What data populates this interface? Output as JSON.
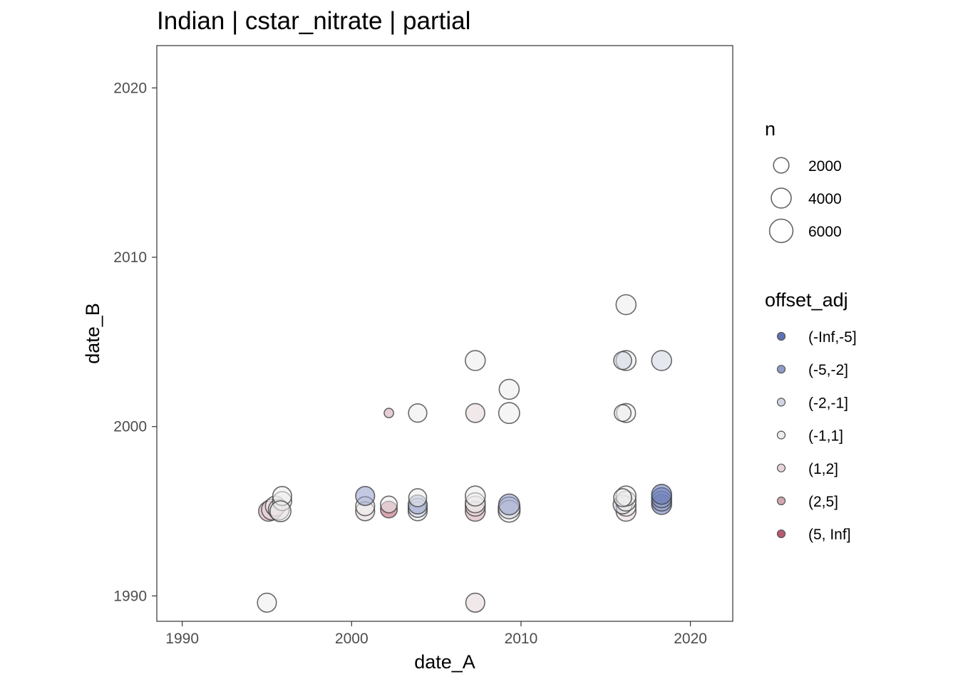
{
  "chart_data": {
    "type": "scatter",
    "title": "Indian | cstar_nitrate | partial",
    "xlabel": "date_A",
    "ylabel": "date_B",
    "xlim": [
      1988.5,
      2022.5
    ],
    "ylim": [
      1988.5,
      2022.5
    ],
    "x_ticks": [
      1990,
      2000,
      2010,
      2020
    ],
    "y_ticks": [
      1990,
      2000,
      2010,
      2020
    ],
    "grid": false,
    "legend_placement": "right",
    "size_legend": {
      "title": "n",
      "entries": [
        {
          "label": "2000",
          "value": 2000
        },
        {
          "label": "4000",
          "value": 4000
        },
        {
          "label": "6000",
          "value": 6000
        }
      ]
    },
    "color_legend": {
      "title": "offset_adj",
      "entries": [
        {
          "label": "(-Inf,-5]",
          "color": "#5e72b5"
        },
        {
          "label": "(-5,-2]",
          "color": "#8f9cc8"
        },
        {
          "label": "(-2,-1]",
          "color": "#d2d5e4"
        },
        {
          "label": "(-1,1]",
          "color": "#ededed"
        },
        {
          "label": "(1,2]",
          "color": "#e6d5d9"
        },
        {
          "label": "(2,5]",
          "color": "#d1a6b0"
        },
        {
          "label": "(5, Inf]",
          "color": "#b65b70"
        }
      ]
    },
    "points": [
      {
        "x": 1995.0,
        "y": 1989.6,
        "n": 3500,
        "cat": "(-1,1]"
      },
      {
        "x": 1995.1,
        "y": 1995.0,
        "n": 4000,
        "cat": "(2,5]"
      },
      {
        "x": 1995.3,
        "y": 1995.1,
        "n": 4500,
        "cat": "(1,2]"
      },
      {
        "x": 1995.5,
        "y": 1995.3,
        "n": 4000,
        "cat": "(-1,1]"
      },
      {
        "x": 1995.7,
        "y": 1995.1,
        "n": 4500,
        "cat": "(1,2]"
      },
      {
        "x": 1995.9,
        "y": 1995.6,
        "n": 3500,
        "cat": "(-1,1]"
      },
      {
        "x": 1995.9,
        "y": 1995.9,
        "n": 3500,
        "cat": "(-1,1]"
      },
      {
        "x": 1995.8,
        "y": 1995.0,
        "n": 4500,
        "cat": "(-1,1]"
      },
      {
        "x": 2000.8,
        "y": 1995.0,
        "n": 3500,
        "cat": "(1,2]"
      },
      {
        "x": 2000.8,
        "y": 1995.3,
        "n": 3500,
        "cat": "(-1,1]"
      },
      {
        "x": 2000.8,
        "y": 1995.9,
        "n": 3500,
        "cat": "(-5,-2]"
      },
      {
        "x": 2002.2,
        "y": 2000.8,
        "n": 400,
        "cat": "(2,5]"
      },
      {
        "x": 2002.2,
        "y": 1995.1,
        "n": 2500,
        "cat": "(5, Inf]"
      },
      {
        "x": 2002.2,
        "y": 1995.4,
        "n": 2500,
        "cat": "(-1,1]"
      },
      {
        "x": 2003.9,
        "y": 2000.8,
        "n": 3200,
        "cat": "(-1,1]"
      },
      {
        "x": 2003.9,
        "y": 1995.0,
        "n": 3500,
        "cat": "(-1,1]"
      },
      {
        "x": 2003.9,
        "y": 1995.2,
        "n": 3500,
        "cat": "(-2,-1]"
      },
      {
        "x": 2003.9,
        "y": 1995.4,
        "n": 3500,
        "cat": "(-5,-2]"
      },
      {
        "x": 2003.9,
        "y": 1995.8,
        "n": 3000,
        "cat": "(-1,1]"
      },
      {
        "x": 2007.3,
        "y": 2003.9,
        "n": 4000,
        "cat": "(-1,1]"
      },
      {
        "x": 2007.3,
        "y": 2000.8,
        "n": 3500,
        "cat": "(1,2]"
      },
      {
        "x": 2007.3,
        "y": 1995.0,
        "n": 4000,
        "cat": "(2,5]"
      },
      {
        "x": 2007.3,
        "y": 1995.3,
        "n": 4000,
        "cat": "(1,2]"
      },
      {
        "x": 2007.3,
        "y": 1995.5,
        "n": 4000,
        "cat": "(-1,1]"
      },
      {
        "x": 2007.3,
        "y": 1995.9,
        "n": 4000,
        "cat": "(-1,1]"
      },
      {
        "x": 2007.3,
        "y": 1989.6,
        "n": 3500,
        "cat": "(1,2]"
      },
      {
        "x": 2009.3,
        "y": 2002.2,
        "n": 4000,
        "cat": "(-1,1]"
      },
      {
        "x": 2009.3,
        "y": 2000.8,
        "n": 4500,
        "cat": "(-1,1]"
      },
      {
        "x": 2009.3,
        "y": 1995.0,
        "n": 5000,
        "cat": "(-1,1]"
      },
      {
        "x": 2009.3,
        "y": 1995.2,
        "n": 5000,
        "cat": "(-2,-1]"
      },
      {
        "x": 2009.3,
        "y": 1995.4,
        "n": 4500,
        "cat": "(-5,-2]"
      },
      {
        "x": 2016.2,
        "y": 2007.2,
        "n": 4000,
        "cat": "(-1,1]"
      },
      {
        "x": 2016.2,
        "y": 2003.9,
        "n": 4000,
        "cat": "(-1,1]"
      },
      {
        "x": 2016.0,
        "y": 2003.9,
        "n": 3000,
        "cat": "(-2,-1]"
      },
      {
        "x": 2016.2,
        "y": 2000.8,
        "n": 3500,
        "cat": "(-1,1]"
      },
      {
        "x": 2016.0,
        "y": 2000.8,
        "n": 2500,
        "cat": "(-1,1]"
      },
      {
        "x": 2016.2,
        "y": 1995.0,
        "n": 4000,
        "cat": "(1,2]"
      },
      {
        "x": 2016.2,
        "y": 1995.3,
        "n": 4000,
        "cat": "(-1,1]"
      },
      {
        "x": 2016.0,
        "y": 1995.4,
        "n": 3500,
        "cat": "(-2,-1]"
      },
      {
        "x": 2016.2,
        "y": 1995.6,
        "n": 4000,
        "cat": "(-1,1]"
      },
      {
        "x": 2016.2,
        "y": 1995.9,
        "n": 4000,
        "cat": "(-1,1]"
      },
      {
        "x": 2016.0,
        "y": 1995.8,
        "n": 3000,
        "cat": "(-1,1]"
      },
      {
        "x": 2018.3,
        "y": 2003.9,
        "n": 4000,
        "cat": "(-2,-1]"
      },
      {
        "x": 2018.3,
        "y": 1995.4,
        "n": 4000,
        "cat": "(-Inf,-5]"
      },
      {
        "x": 2018.3,
        "y": 1995.6,
        "n": 4000,
        "cat": "(-5,-2]"
      },
      {
        "x": 2018.3,
        "y": 1995.8,
        "n": 4000,
        "cat": "(-5,-2]"
      },
      {
        "x": 2018.3,
        "y": 1996.0,
        "n": 4000,
        "cat": "(-Inf,-5]"
      }
    ]
  }
}
